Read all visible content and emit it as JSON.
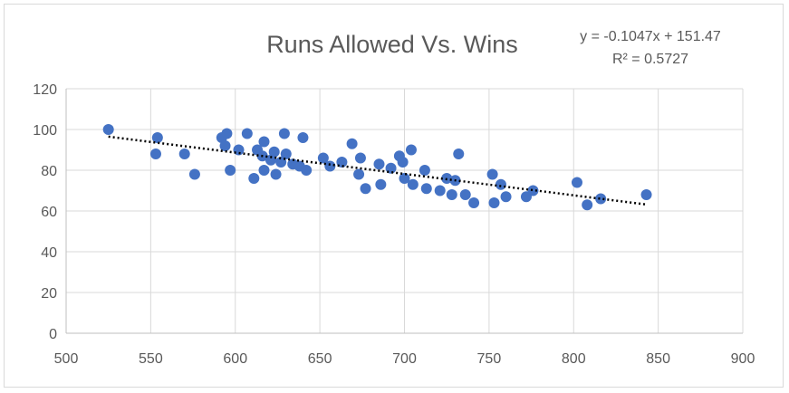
{
  "chart_data": {
    "type": "scatter",
    "title": "Runs Allowed Vs. Wins",
    "xlabel": "",
    "ylabel": "",
    "xlim": [
      500,
      900
    ],
    "ylim": [
      0,
      120
    ],
    "x_ticks": [
      "500",
      "550",
      "600",
      "650",
      "700",
      "750",
      "800",
      "850",
      "900"
    ],
    "y_ticks": [
      "0",
      "20",
      "40",
      "60",
      "80",
      "100",
      "120"
    ],
    "grid": true,
    "legend": "none",
    "point_color": "#4472c4",
    "trendline": {
      "type": "linear",
      "slope": -0.1047,
      "intercept": 151.47,
      "equation": "y = -0.1047x + 151.47",
      "r_squared": "R² = 0.5727"
    },
    "points": [
      [
        525,
        100
      ],
      [
        553,
        88
      ],
      [
        554,
        96
      ],
      [
        570,
        88
      ],
      [
        576,
        78
      ],
      [
        592,
        96
      ],
      [
        594,
        92
      ],
      [
        595,
        98
      ],
      [
        597,
        80
      ],
      [
        602,
        90
      ],
      [
        607,
        98
      ],
      [
        611,
        76
      ],
      [
        613,
        90
      ],
      [
        616,
        87
      ],
      [
        617,
        94
      ],
      [
        617,
        80
      ],
      [
        621,
        85
      ],
      [
        623,
        89
      ],
      [
        624,
        78
      ],
      [
        627,
        84
      ],
      [
        629,
        98
      ],
      [
        630,
        88
      ],
      [
        634,
        83
      ],
      [
        638,
        82
      ],
      [
        640,
        96
      ],
      [
        642,
        80
      ],
      [
        652,
        86
      ],
      [
        656,
        82
      ],
      [
        663,
        84
      ],
      [
        669,
        93
      ],
      [
        673,
        78
      ],
      [
        674,
        86
      ],
      [
        677,
        71
      ],
      [
        685,
        83
      ],
      [
        686,
        73
      ],
      [
        692,
        81
      ],
      [
        697,
        87
      ],
      [
        699,
        84
      ],
      [
        700,
        76
      ],
      [
        704,
        90
      ],
      [
        705,
        73
      ],
      [
        712,
        80
      ],
      [
        713,
        71
      ],
      [
        721,
        70
      ],
      [
        725,
        76
      ],
      [
        728,
        68
      ],
      [
        730,
        75
      ],
      [
        732,
        88
      ],
      [
        736,
        68
      ],
      [
        741,
        64
      ],
      [
        752,
        78
      ],
      [
        753,
        64
      ],
      [
        757,
        73
      ],
      [
        760,
        67
      ],
      [
        772,
        67
      ],
      [
        776,
        70
      ],
      [
        802,
        74
      ],
      [
        808,
        63
      ],
      [
        816,
        66
      ],
      [
        843,
        68
      ]
    ]
  }
}
